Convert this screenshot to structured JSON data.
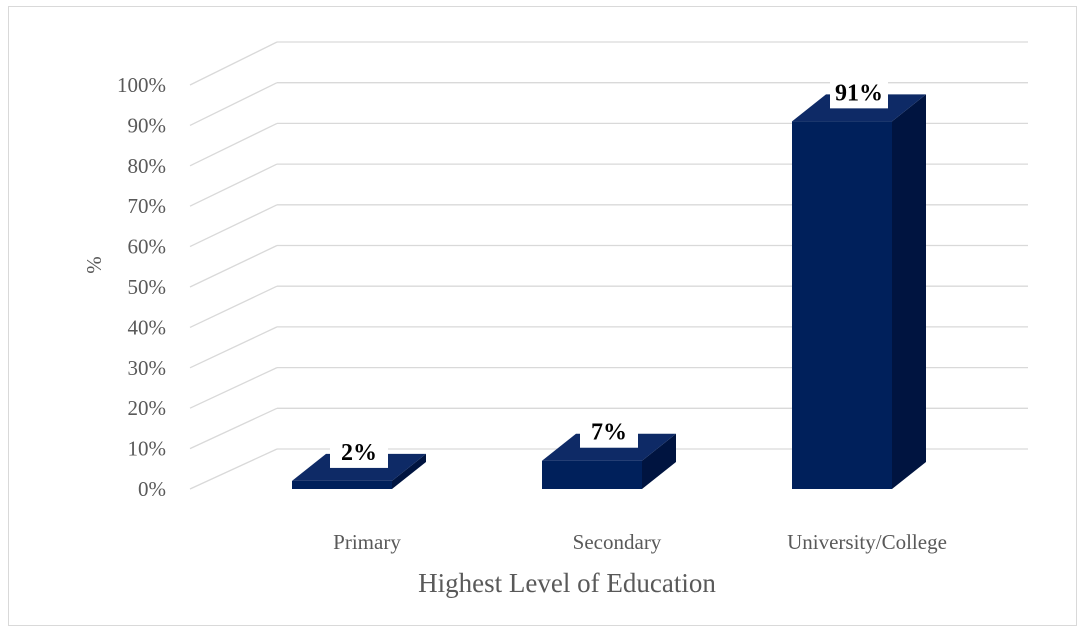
{
  "chart_data": {
    "type": "bar",
    "categories": [
      "Primary",
      "Secondary",
      "University/College"
    ],
    "values": [
      2,
      7,
      91
    ],
    "data_labels": [
      "2%",
      "7%",
      "91%"
    ],
    "xlabel": "Highest Level of Education",
    "ylabel": "%",
    "ylim": [
      0,
      100
    ],
    "yticks": [
      "0%",
      "10%",
      "20%",
      "30%",
      "40%",
      "50%",
      "60%",
      "70%",
      "80%",
      "90%",
      "100%"
    ],
    "grid": true,
    "style": "3d-column",
    "colors": {
      "front": "#00205B",
      "side": "#001440",
      "top": "#0E2A66",
      "grid": "#D9D9D9",
      "text": "#595959"
    }
  }
}
